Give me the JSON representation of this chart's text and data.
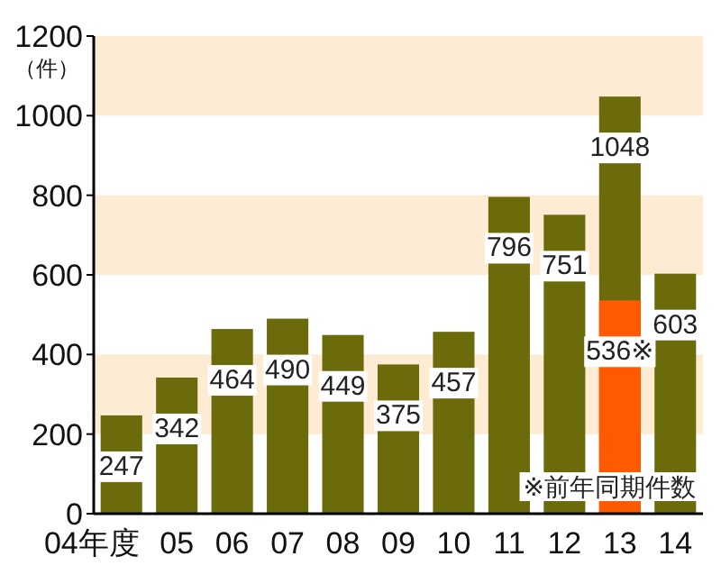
{
  "chart_data": {
    "type": "bar",
    "ylabel": "（件）",
    "categories": [
      "04年度",
      "05",
      "06",
      "07",
      "08",
      "09",
      "10",
      "11",
      "12",
      "13",
      "14"
    ],
    "series": [
      {
        "color": "#6b6b0b",
        "values": [
          247,
          342,
          464,
          490,
          449,
          375,
          457,
          796,
          751,
          1048,
          603
        ],
        "value_labels": [
          "247",
          "342",
          "464",
          "490",
          "449",
          "375",
          "457",
          "796",
          "751",
          "1048",
          "603"
        ]
      },
      {
        "color": "#ff5a00",
        "values": [
          null,
          null,
          null,
          null,
          null,
          null,
          null,
          null,
          null,
          536,
          null
        ],
        "value_labels": [
          null,
          null,
          null,
          null,
          null,
          null,
          null,
          null,
          null,
          "536※",
          null
        ]
      }
    ],
    "ylim": [
      0,
      1200
    ],
    "yticks": [
      0,
      200,
      400,
      600,
      800,
      1000,
      1200
    ],
    "bands": [
      {
        "axis": "y",
        "from": 200,
        "to": 400,
        "color": "#fdebd3"
      },
      {
        "axis": "y",
        "from": 600,
        "to": 800,
        "color": "#fdebd3"
      },
      {
        "axis": "y",
        "from": 1000,
        "to": 1200,
        "color": "#fdebd3"
      }
    ],
    "annotations": [
      "※前年同期件数"
    ],
    "grid": false
  }
}
